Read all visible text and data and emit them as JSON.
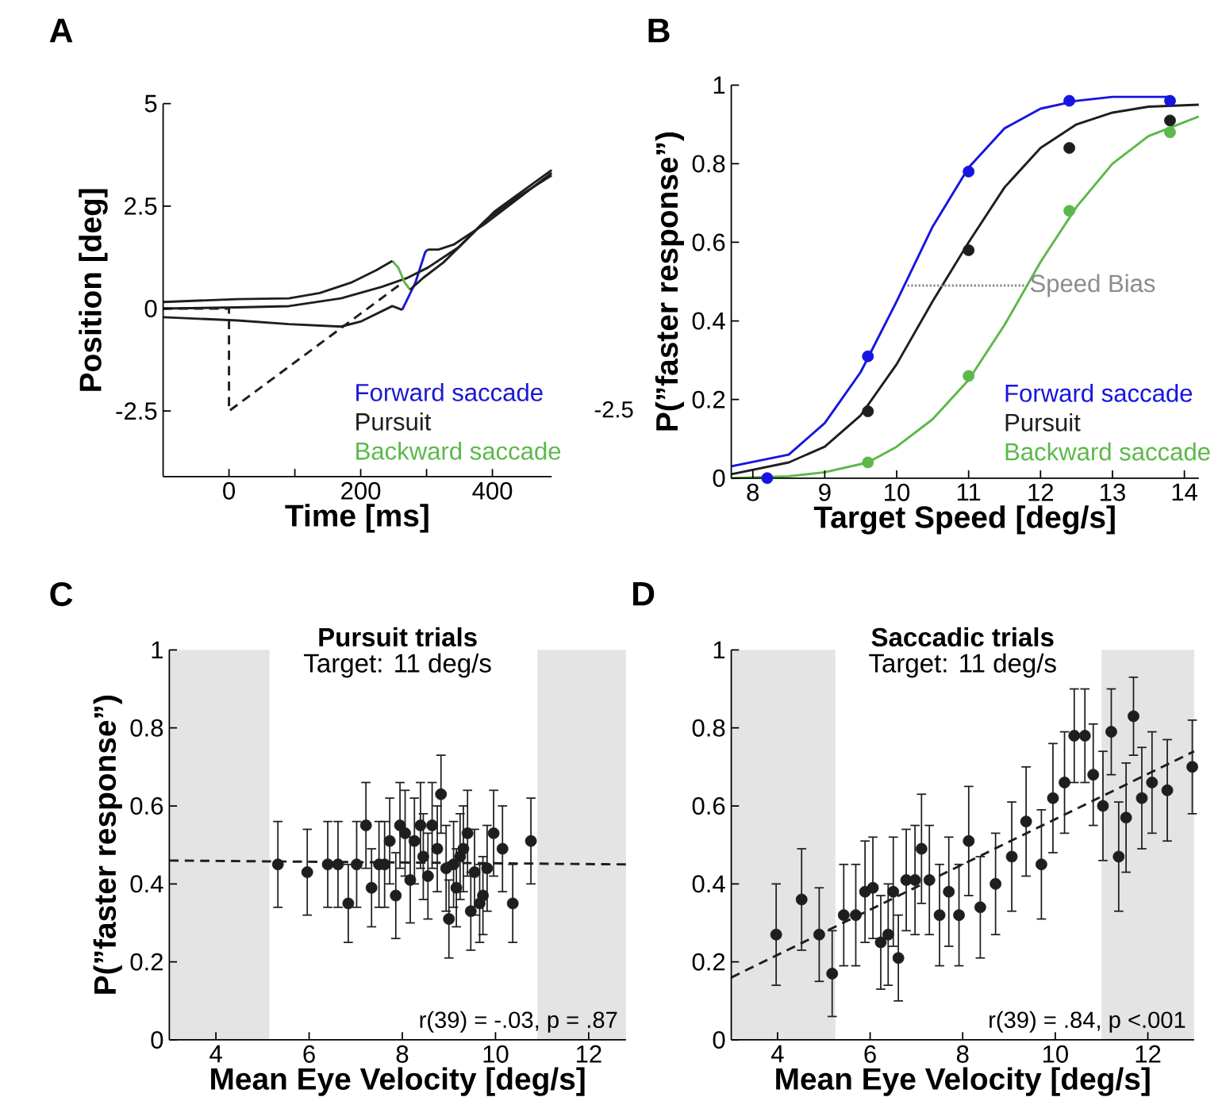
{
  "chart_data": [
    {
      "type": "line",
      "xlabel": "Time [ms]",
      "ylabel": "Position [deg]",
      "xlim": [
        -100,
        490
      ],
      "ylim": [
        -4.1,
        5
      ],
      "xticks": [
        0,
        {
          "value": 100,
          "label": null
        },
        200,
        {
          "value": 300,
          "label": null
        },
        400
      ],
      "yticks": [
        -2.5,
        0,
        2.5,
        5
      ],
      "legend": "bottom right",
      "annotations": [
        "A",
        "-2.5"
      ],
      "series": [
        {
          "name": "Forward saccade",
          "color": "#1a1ad0",
          "x": [
            263,
            283,
            298,
            302
          ],
          "values": [
            -0.03,
            0.63,
            1.38,
            1.44
          ]
        },
        {
          "name": "Pursuit",
          "color": "#1e1e1e",
          "x": [
            -100,
            13,
            91,
            170,
            232,
            271,
            302,
            349,
            388,
            435,
            490
          ],
          "values": [
            0,
            0.03,
            0.06,
            0.25,
            0.53,
            0.75,
            1.0,
            1.5,
            2.13,
            2.69,
            3.25
          ]
        },
        {
          "name": "Backward saccade",
          "color": "#5cb848",
          "x": [
            248,
            257,
            267,
            275
          ],
          "values": [
            1.16,
            1.0,
            0.63,
            0.46
          ]
        },
        {
          "color": "#1e1e1e",
          "x": [
            -100,
            13,
            91,
            138,
            185,
            224,
            248
          ],
          "values": [
            0.16,
            0.23,
            0.25,
            0.38,
            0.63,
            0.94,
            1.16
          ]
        },
        {
          "color": "#1e1e1e",
          "x": [
            275,
            295,
            326,
            373,
            404,
            490
          ],
          "values": [
            0.46,
            0.75,
            1.13,
            1.88,
            2.38,
            3.38
          ]
        },
        {
          "color": "#1e1e1e",
          "x": [
            -100,
            13,
            91,
            170,
            201,
            248,
            263
          ],
          "values": [
            -0.21,
            -0.29,
            -0.38,
            -0.44,
            -0.31,
            0.06,
            -0.03
          ]
        },
        {
          "color": "#1e1e1e",
          "x": [
            302,
            318,
            341,
            388,
            490
          ],
          "values": [
            1.44,
            1.44,
            1.56,
            2.06,
            3.31
          ]
        },
        {
          "color": "#1e1e1e",
          "line_style": "dashed",
          "x": [
            -100,
            0,
            0,
            265
          ],
          "values": [
            0,
            0,
            -2.5,
            0.65
          ]
        }
      ]
    },
    {
      "type": "line",
      "xlabel": "Target Speed [deg/s]",
      "ylabel": "P(”faster response”)",
      "xlim": [
        7.7,
        14.2
      ],
      "ylim": [
        0,
        1
      ],
      "xticks": [
        8,
        9,
        10,
        11,
        12,
        13,
        14
      ],
      "yticks": [
        0,
        0.2,
        0.4,
        0.6,
        0.8,
        1
      ],
      "legend": "bottom right",
      "annotations": [
        "B",
        {
          "text": "Speed Bias",
          "x": 11.8,
          "y": 0.49
        }
      ],
      "series": [
        {
          "name": "Forward saccade",
          "color": "#1515e0",
          "marker": "none",
          "x": [
            7.7,
            8.5,
            9,
            9.5,
            10,
            10.5,
            11,
            11.5,
            12,
            12.5,
            13,
            13.8
          ],
          "values": [
            0.03,
            0.06,
            0.14,
            0.27,
            0.45,
            0.64,
            0.79,
            0.89,
            0.94,
            0.96,
            0.97,
            0.97
          ]
        },
        {
          "name": "Pursuit",
          "color": "#1e1e1e",
          "marker": "none",
          "x": [
            7.7,
            8.5,
            9,
            9.5,
            10,
            10.5,
            11,
            11.5,
            12,
            12.5,
            13,
            13.5,
            14.2
          ],
          "values": [
            0.01,
            0.04,
            0.08,
            0.16,
            0.29,
            0.45,
            0.6,
            0.74,
            0.84,
            0.9,
            0.93,
            0.945,
            0.95
          ]
        },
        {
          "name": "Backward saccade",
          "color": "#5cb848",
          "marker": "none",
          "x": [
            7.7,
            8.5,
            9,
            9.6,
            10,
            10.5,
            11,
            11.5,
            12,
            12.5,
            13,
            13.5,
            14.2
          ],
          "values": [
            0,
            0.005,
            0.015,
            0.04,
            0.08,
            0.15,
            0.25,
            0.39,
            0.55,
            0.69,
            0.8,
            0.87,
            0.92
          ]
        },
        {
          "type": "scatter",
          "color": "#1515e0",
          "marker": "circle",
          "x": [
            8.2,
            9.6,
            11,
            12.4,
            13.8
          ],
          "values": [
            0,
            0.31,
            0.78,
            0.96,
            0.96
          ]
        },
        {
          "type": "scatter",
          "color": "#1e1e1e",
          "marker": "circle",
          "x": [
            9.6,
            11,
            12.4,
            13.8
          ],
          "values": [
            0.17,
            0.58,
            0.84,
            0.91
          ]
        },
        {
          "type": "scatter",
          "color": "#5cb848",
          "marker": "circle",
          "x": [
            9.6,
            11,
            12.4,
            13.8
          ],
          "values": [
            0.04,
            0.26,
            0.68,
            0.88
          ]
        },
        {
          "color": "#8c8c8c",
          "marker": "none",
          "line_style": "dotted",
          "x": [
            10.15,
            11.8
          ],
          "values": [
            0.49,
            0.49
          ]
        }
      ]
    },
    {
      "type": "scatter",
      "title": "Pursuit trials",
      "subtitle": "Target: 11 deg/s",
      "xlabel": "Mean Eye Velocity [deg/s]",
      "ylabel": "P(”faster response”)",
      "xlim": [
        3,
        12.8
      ],
      "ylim": [
        0,
        1
      ],
      "xticks": [
        4,
        6,
        8,
        10,
        12
      ],
      "yticks": [
        0,
        0.2,
        0.4,
        0.6,
        0.8,
        1
      ],
      "annotations": [
        "C",
        "r(39) = -.03, p = .87"
      ],
      "bands": [
        {
          "axis": "x",
          "from": 3,
          "to": 5.15,
          "color": "#e4e4e4"
        },
        {
          "axis": "x",
          "from": 10.9,
          "to": 12.8,
          "color": "#e4e4e4"
        }
      ],
      "series": [
        {
          "color": "#1e1e1e",
          "marker": "circle",
          "x": [
            5.33,
            5.96,
            6.4,
            6.62,
            6.84,
            7.02,
            7.22,
            7.34,
            7.5,
            7.62,
            7.73,
            7.86,
            7.95,
            8.06,
            8.17,
            8.26,
            8.39,
            8.45,
            8.55,
            8.64,
            8.75,
            8.83,
            8.94,
            9.0,
            9.1,
            9.16,
            9.24,
            9.31,
            9.4,
            9.47,
            9.55,
            9.66,
            9.73,
            9.82,
            9.96,
            10.15,
            10.37,
            10.76
          ],
          "values": [
            0.45,
            0.43,
            0.45,
            0.45,
            0.35,
            0.45,
            0.55,
            0.39,
            0.45,
            0.45,
            0.51,
            0.37,
            0.55,
            0.53,
            0.41,
            0.51,
            0.55,
            0.47,
            0.42,
            0.55,
            0.49,
            0.63,
            0.44,
            0.31,
            0.45,
            0.39,
            0.47,
            0.49,
            0.53,
            0.33,
            0.43,
            0.35,
            0.37,
            0.44,
            0.53,
            0.49,
            0.35,
            0.51
          ],
          "errors": [
            0.11,
            0.11,
            0.11,
            0.11,
            0.1,
            0.11,
            0.11,
            0.1,
            0.11,
            0.11,
            0.11,
            0.11,
            0.11,
            0.11,
            0.11,
            0.11,
            0.11,
            0.11,
            0.11,
            0.11,
            0.11,
            0.1,
            0.11,
            0.1,
            0.11,
            0.1,
            0.11,
            0.11,
            0.11,
            0.1,
            0.11,
            0.1,
            0.1,
            0.11,
            0.11,
            0.11,
            0.1,
            0.11
          ]
        },
        {
          "type": "line",
          "color": "#1e1e1e",
          "marker": "none",
          "line_style": "dashed",
          "x": [
            3,
            12.8
          ],
          "values": [
            0.46,
            0.45
          ]
        }
      ]
    },
    {
      "type": "scatter",
      "title": "Saccadic trials",
      "subtitle": "Target: 11 deg/s",
      "xlabel": "Mean Eye Velocity [deg/s]",
      "xlim": [
        3,
        13
      ],
      "ylim": [
        0,
        1
      ],
      "xticks": [
        4,
        6,
        8,
        10,
        12
      ],
      "yticks": [
        0,
        0.2,
        0.4,
        0.6,
        0.8,
        1
      ],
      "annotations": [
        "D",
        "r(39) = .84, p <.001"
      ],
      "bands": [
        {
          "axis": "x",
          "from": 3,
          "to": 5.25,
          "color": "#e4e4e4"
        },
        {
          "axis": "x",
          "from": 11,
          "to": 13,
          "color": "#e4e4e4"
        }
      ],
      "series": [
        {
          "color": "#1e1e1e",
          "marker": "circle",
          "x": [
            3.97,
            4.52,
            4.9,
            5.18,
            5.43,
            5.69,
            5.89,
            6.06,
            6.23,
            6.39,
            6.5,
            6.61,
            6.78,
            6.97,
            7.11,
            7.28,
            7.5,
            7.7,
            7.92,
            8.13,
            8.38,
            8.71,
            9.06,
            9.37,
            9.7,
            9.95,
            10.2,
            10.41,
            10.64,
            10.82,
            11.03,
            11.21,
            11.37,
            11.53,
            11.69,
            11.87,
            12.09,
            12.42,
            12.96
          ],
          "values": [
            0.27,
            0.36,
            0.27,
            0.17,
            0.32,
            0.32,
            0.38,
            0.39,
            0.25,
            0.27,
            0.38,
            0.21,
            0.41,
            0.41,
            0.49,
            0.41,
            0.32,
            0.38,
            0.32,
            0.51,
            0.34,
            0.4,
            0.47,
            0.56,
            0.45,
            0.62,
            0.66,
            0.78,
            0.78,
            0.68,
            0.6,
            0.79,
            0.47,
            0.57,
            0.83,
            0.62,
            0.66,
            0.64,
            0.7
          ],
          "errors": [
            0.13,
            0.13,
            0.12,
            0.11,
            0.13,
            0.13,
            0.13,
            0.13,
            0.12,
            0.13,
            0.14,
            0.11,
            0.13,
            0.14,
            0.14,
            0.14,
            0.13,
            0.14,
            0.13,
            0.14,
            0.13,
            0.13,
            0.14,
            0.14,
            0.14,
            0.14,
            0.13,
            0.12,
            0.12,
            0.13,
            0.14,
            0.11,
            0.14,
            0.14,
            0.1,
            0.13,
            0.13,
            0.13,
            0.12
          ]
        },
        {
          "type": "line",
          "color": "#1e1e1e",
          "marker": "none",
          "line_style": "dashed",
          "x": [
            3,
            13
          ],
          "values": [
            0.16,
            0.74
          ]
        }
      ]
    }
  ]
}
